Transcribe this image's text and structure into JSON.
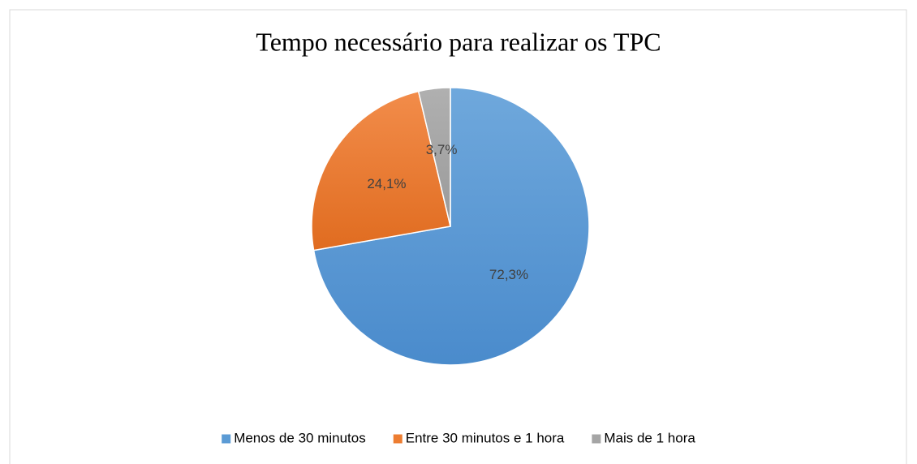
{
  "chart_data": {
    "type": "pie",
    "title": "Tempo necessário para realizar os TPC",
    "categories": [
      "Menos de 30 minutos",
      "Entre 30 minutos e 1 hora",
      "Mais de 1 hora"
    ],
    "values": [
      72.3,
      24.1,
      3.7
    ],
    "value_labels": [
      "72,3%",
      "24,1%",
      "3,7%"
    ],
    "colors": [
      "#5b9bd5",
      "#ed7d31",
      "#a5a5a5"
    ],
    "legend": "bottom"
  }
}
